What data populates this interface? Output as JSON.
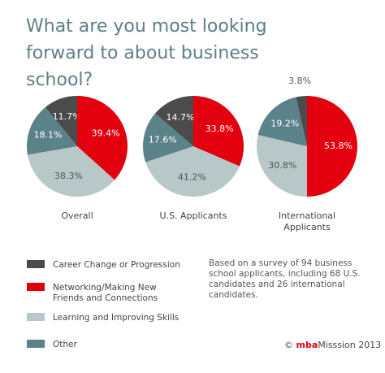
{
  "title": "What are you most looking forward to about business school?",
  "chart_data": [
    {
      "type": "pie",
      "title": "Overall",
      "categories": [
        "Career Change or Progression",
        "Networking/Making New Friends and Connections",
        "Learning and Improving Skills",
        "Other"
      ],
      "values": [
        11.7,
        39.4,
        38.3,
        18.1
      ],
      "value_labels": [
        "11.7%",
        "39.4%",
        "38.3%",
        "18.1%"
      ],
      "colors": [
        "#4b4b4b",
        "#e2000f",
        "#b8c7c7",
        "#5b8189"
      ]
    },
    {
      "type": "pie",
      "title": "U.S. Applicants",
      "categories": [
        "Career Change or Progression",
        "Networking/Making New Friends and Connections",
        "Learning and Improving Skills",
        "Other"
      ],
      "values": [
        14.7,
        33.8,
        41.2,
        17.6
      ],
      "value_labels": [
        "14.7%",
        "33.8%",
        "41.2%",
        "17.6%"
      ],
      "colors": [
        "#4b4b4b",
        "#e2000f",
        "#b8c7c7",
        "#5b8189"
      ]
    },
    {
      "type": "pie",
      "title": "International Applicants",
      "categories": [
        "Career Change or Progression",
        "Networking/Making New Friends and Connections",
        "Learning and Improving Skills",
        "Other"
      ],
      "values": [
        3.8,
        53.8,
        30.8,
        19.2
      ],
      "value_labels": [
        "3.8%",
        "53.8%",
        "30.8%",
        "19.2%"
      ],
      "colors": [
        "#4b4b4b",
        "#e2000f",
        "#b8c7c7",
        "#5b8189"
      ]
    }
  ],
  "note": "Based on a survey of 94 business school applicants, including 68 U.S. candidates and 26 international candidates.",
  "credit": {
    "symbol": "©",
    "brand_a": "mba",
    "brand_b": "Misssion",
    "year": "2013"
  }
}
